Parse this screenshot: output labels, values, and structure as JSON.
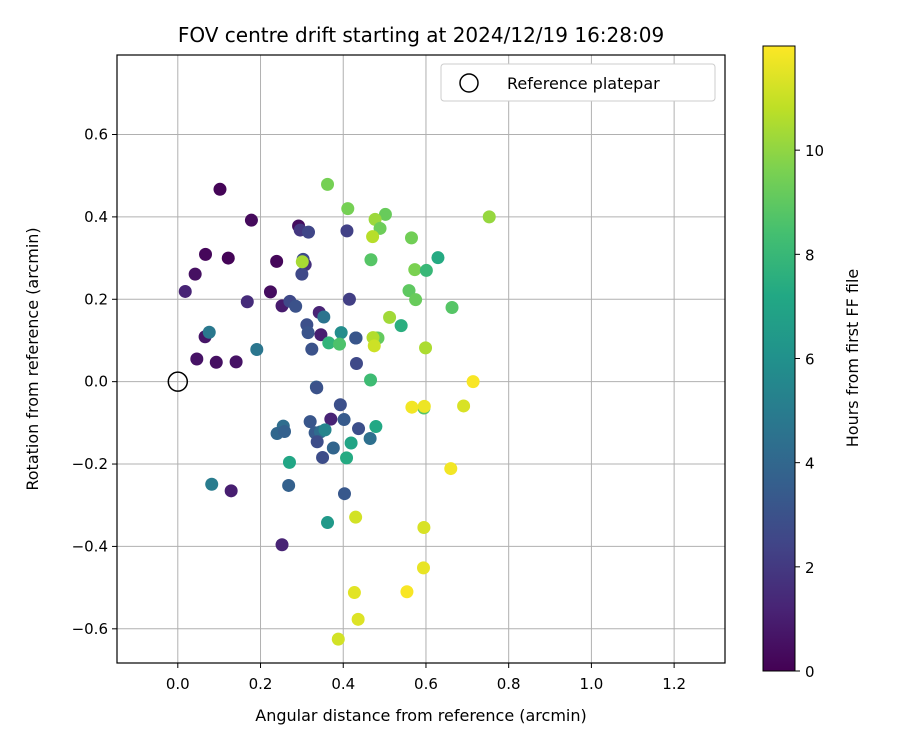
{
  "chart_data": {
    "type": "scatter",
    "title": "FOV centre drift starting at 2024/12/19 16:28:09",
    "xlabel": "Angular distance from reference (arcmin)",
    "ylabel": "Rotation from reference (arcmin)",
    "xlim": [
      -0.147,
      1.323
    ],
    "ylim": [
      -0.683,
      0.793
    ],
    "xticks": [
      0.0,
      0.2,
      0.4,
      0.6,
      0.8,
      1.0,
      1.2
    ],
    "yticks": [
      -0.6,
      -0.4,
      -0.2,
      0.0,
      0.2,
      0.4,
      0.6
    ],
    "grid": true,
    "legend": {
      "position": "top-right",
      "label": "Reference platepar"
    },
    "reference_point": {
      "x": 0.0,
      "y": 0.0
    },
    "colorbar": {
      "label": "Hours from first FF file",
      "range": [
        0,
        12
      ],
      "ticks": [
        0,
        2,
        4,
        6,
        8,
        10
      ],
      "colormap": "viridis"
    },
    "points": [
      {
        "x": 0.102,
        "y": 0.467,
        "t": 0.1
      },
      {
        "x": 0.178,
        "y": 0.392,
        "t": 0.3
      },
      {
        "x": 0.292,
        "y": 0.378,
        "t": 0.4
      },
      {
        "x": 0.067,
        "y": 0.309,
        "t": 0.2
      },
      {
        "x": 0.122,
        "y": 0.3,
        "t": 0.1
      },
      {
        "x": 0.239,
        "y": 0.292,
        "t": 0.2
      },
      {
        "x": 0.042,
        "y": 0.261,
        "t": 0.5
      },
      {
        "x": 0.018,
        "y": 0.219,
        "t": 1.2
      },
      {
        "x": 0.224,
        "y": 0.218,
        "t": 0.4
      },
      {
        "x": 0.168,
        "y": 0.194,
        "t": 1.5
      },
      {
        "x": 0.252,
        "y": 0.184,
        "t": 0.9
      },
      {
        "x": 0.066,
        "y": 0.109,
        "t": 0.7
      },
      {
        "x": 0.046,
        "y": 0.055,
        "t": 0.6
      },
      {
        "x": 0.093,
        "y": 0.047,
        "t": 0.5
      },
      {
        "x": 0.141,
        "y": 0.048,
        "t": 0.6
      },
      {
        "x": 0.346,
        "y": 0.114,
        "t": 1.0
      },
      {
        "x": 0.342,
        "y": 0.168,
        "t": 1.2
      },
      {
        "x": 0.296,
        "y": 0.368,
        "t": 1.9
      },
      {
        "x": 0.316,
        "y": 0.363,
        "t": 2.5
      },
      {
        "x": 0.409,
        "y": 0.366,
        "t": 2.3
      },
      {
        "x": 0.303,
        "y": 0.297,
        "t": 2.7
      },
      {
        "x": 0.308,
        "y": 0.284,
        "t": 1.7
      },
      {
        "x": 0.3,
        "y": 0.261,
        "t": 2.6
      },
      {
        "x": 0.271,
        "y": 0.195,
        "t": 2.6
      },
      {
        "x": 0.285,
        "y": 0.183,
        "t": 3.0
      },
      {
        "x": 0.415,
        "y": 0.2,
        "t": 2.2
      },
      {
        "x": 0.312,
        "y": 0.138,
        "t": 2.9
      },
      {
        "x": 0.315,
        "y": 0.119,
        "t": 3.1
      },
      {
        "x": 0.324,
        "y": 0.079,
        "t": 3.0
      },
      {
        "x": 0.353,
        "y": 0.157,
        "t": 4.6
      },
      {
        "x": 0.076,
        "y": 0.12,
        "t": 4.8
      },
      {
        "x": 0.191,
        "y": 0.078,
        "t": 4.7
      },
      {
        "x": 0.43,
        "y": 0.106,
        "t": 3.6
      },
      {
        "x": 0.431,
        "y": 0.106,
        "t": 3.2
      },
      {
        "x": 0.432,
        "y": 0.044,
        "t": 2.6
      },
      {
        "x": 0.395,
        "y": 0.119,
        "t": 5.8
      },
      {
        "x": 0.365,
        "y": 0.094,
        "t": 7.8
      },
      {
        "x": 0.391,
        "y": 0.091,
        "t": 8.6
      },
      {
        "x": 0.335,
        "y": -0.013,
        "t": 3.6
      },
      {
        "x": 0.336,
        "y": -0.015,
        "t": 3.0
      },
      {
        "x": 0.393,
        "y": -0.056,
        "t": 2.9
      },
      {
        "x": 0.37,
        "y": -0.091,
        "t": 1.2
      },
      {
        "x": 0.402,
        "y": -0.092,
        "t": 3.4
      },
      {
        "x": 0.32,
        "y": -0.097,
        "t": 3.2
      },
      {
        "x": 0.255,
        "y": -0.108,
        "t": 4.3
      },
      {
        "x": 0.24,
        "y": -0.126,
        "t": 4.0
      },
      {
        "x": 0.258,
        "y": -0.121,
        "t": 3.7
      },
      {
        "x": 0.332,
        "y": -0.124,
        "t": 3.4
      },
      {
        "x": 0.345,
        "y": -0.122,
        "t": 4.2
      },
      {
        "x": 0.356,
        "y": -0.117,
        "t": 5.4
      },
      {
        "x": 0.437,
        "y": -0.114,
        "t": 2.9
      },
      {
        "x": 0.337,
        "y": -0.146,
        "t": 2.8
      },
      {
        "x": 0.376,
        "y": -0.161,
        "t": 3.9
      },
      {
        "x": 0.35,
        "y": -0.184,
        "t": 2.8
      },
      {
        "x": 0.419,
        "y": -0.149,
        "t": 7.0
      },
      {
        "x": 0.465,
        "y": -0.138,
        "t": 4.4
      },
      {
        "x": 0.479,
        "y": -0.109,
        "t": 7.2
      },
      {
        "x": 0.408,
        "y": -0.185,
        "t": 7.3
      },
      {
        "x": 0.27,
        "y": -0.196,
        "t": 7.1
      },
      {
        "x": 0.082,
        "y": -0.249,
        "t": 5.0
      },
      {
        "x": 0.129,
        "y": -0.265,
        "t": 1.0
      },
      {
        "x": 0.268,
        "y": -0.252,
        "t": 3.7
      },
      {
        "x": 0.403,
        "y": -0.272,
        "t": 3.3
      },
      {
        "x": 0.362,
        "y": -0.342,
        "t": 6.4
      },
      {
        "x": 0.252,
        "y": -0.396,
        "t": 1.2
      },
      {
        "x": 0.362,
        "y": 0.479,
        "t": 9.5
      },
      {
        "x": 0.411,
        "y": 0.42,
        "t": 9.5
      },
      {
        "x": 0.502,
        "y": 0.406,
        "t": 9.2
      },
      {
        "x": 0.477,
        "y": 0.394,
        "t": 10.2
      },
      {
        "x": 0.489,
        "y": 0.372,
        "t": 9.3
      },
      {
        "x": 0.471,
        "y": 0.352,
        "t": 10.7
      },
      {
        "x": 0.565,
        "y": 0.349,
        "t": 9.4
      },
      {
        "x": 0.301,
        "y": 0.291,
        "t": 10.4
      },
      {
        "x": 0.467,
        "y": 0.296,
        "t": 8.8
      },
      {
        "x": 0.629,
        "y": 0.301,
        "t": 7.3
      },
      {
        "x": 0.573,
        "y": 0.272,
        "t": 9.6
      },
      {
        "x": 0.601,
        "y": 0.27,
        "t": 8.0
      },
      {
        "x": 0.559,
        "y": 0.221,
        "t": 9.0
      },
      {
        "x": 0.575,
        "y": 0.199,
        "t": 9.2
      },
      {
        "x": 0.663,
        "y": 0.18,
        "t": 8.8
      },
      {
        "x": 0.512,
        "y": 0.156,
        "t": 10.3
      },
      {
        "x": 0.54,
        "y": 0.136,
        "t": 7.5
      },
      {
        "x": 0.479,
        "y": 0.106,
        "t": 10.5
      },
      {
        "x": 0.484,
        "y": 0.106,
        "t": 9.1
      },
      {
        "x": 0.472,
        "y": 0.107,
        "t": 10.6
      },
      {
        "x": 0.475,
        "y": 0.087,
        "t": 11.1
      },
      {
        "x": 0.599,
        "y": 0.082,
        "t": 10.5
      },
      {
        "x": 0.466,
        "y": 0.004,
        "t": 8.2
      },
      {
        "x": 0.753,
        "y": 0.4,
        "t": 10.1
      },
      {
        "x": 0.595,
        "y": -0.064,
        "t": 8.7
      },
      {
        "x": 0.566,
        "y": -0.062,
        "t": 11.8
      },
      {
        "x": 0.596,
        "y": -0.06,
        "t": 11.7
      },
      {
        "x": 0.714,
        "y": 0.0,
        "t": 11.9
      },
      {
        "x": 0.691,
        "y": -0.059,
        "t": 11.3
      },
      {
        "x": 0.66,
        "y": -0.211,
        "t": 11.8
      },
      {
        "x": 0.43,
        "y": -0.329,
        "t": 11.2
      },
      {
        "x": 0.595,
        "y": -0.354,
        "t": 11.3
      },
      {
        "x": 0.427,
        "y": -0.512,
        "t": 11.5
      },
      {
        "x": 0.554,
        "y": -0.51,
        "t": 11.9
      },
      {
        "x": 0.594,
        "y": -0.452,
        "t": 11.6
      },
      {
        "x": 0.436,
        "y": -0.577,
        "t": 11.4
      },
      {
        "x": 0.388,
        "y": -0.625,
        "t": 11.2
      }
    ]
  }
}
